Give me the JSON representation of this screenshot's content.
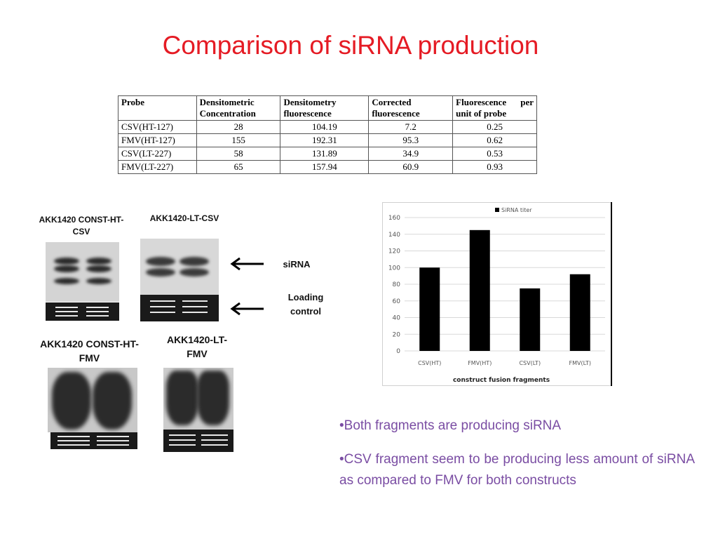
{
  "title": "Comparison of siRNA  production",
  "table": {
    "headers": [
      "Probe",
      "Densitometric Concentration",
      "Densitometry fluorescence",
      "Corrected fluorescence",
      "Fluorescence per unit of probe"
    ],
    "rows": [
      [
        "CSV(HT-127)",
        "28",
        "104.19",
        "7.2",
        "0.25"
      ],
      [
        "FMV(HT-127)",
        "155",
        "192.31",
        "95.3",
        "0.62"
      ],
      [
        "CSV(LT-227)",
        "58",
        "131.89",
        "34.9",
        "0.53"
      ],
      [
        "FMV(LT-227)",
        "65",
        "157.94",
        "60.9",
        "0.93"
      ]
    ]
  },
  "blots": {
    "label_const_csv": "AKK1420 CONST-HT-CSV",
    "label_lt_csv": "AKK1420-LT-CSV",
    "label_const_fmv": "AKK1420 CONST-HT-FMV",
    "label_lt_fmv": "AKK1420-LT-FMV",
    "arrow_sirna": "siRNA",
    "arrow_loading": "Loading control"
  },
  "chart_data": {
    "type": "bar",
    "categories": [
      "CSV(HT)",
      "FMV(HT)",
      "CSV(LT)",
      "FMV(LT)"
    ],
    "series": [
      {
        "name": "SiRNA titer",
        "values": [
          100,
          145,
          75,
          92
        ]
      }
    ],
    "xlabel": "construct fusion  fragments",
    "ylabel": "",
    "ylim": [
      0,
      160
    ],
    "yticks": [
      0,
      20,
      40,
      60,
      80,
      100,
      120,
      140,
      160
    ],
    "grid": true,
    "legend": "top",
    "bar_color": "#000000"
  },
  "bullets": [
    "•Both fragments are producing siRNA",
    "•CSV fragment seem to be producing less amount of siRNA as compared to FMV for both constructs"
  ]
}
